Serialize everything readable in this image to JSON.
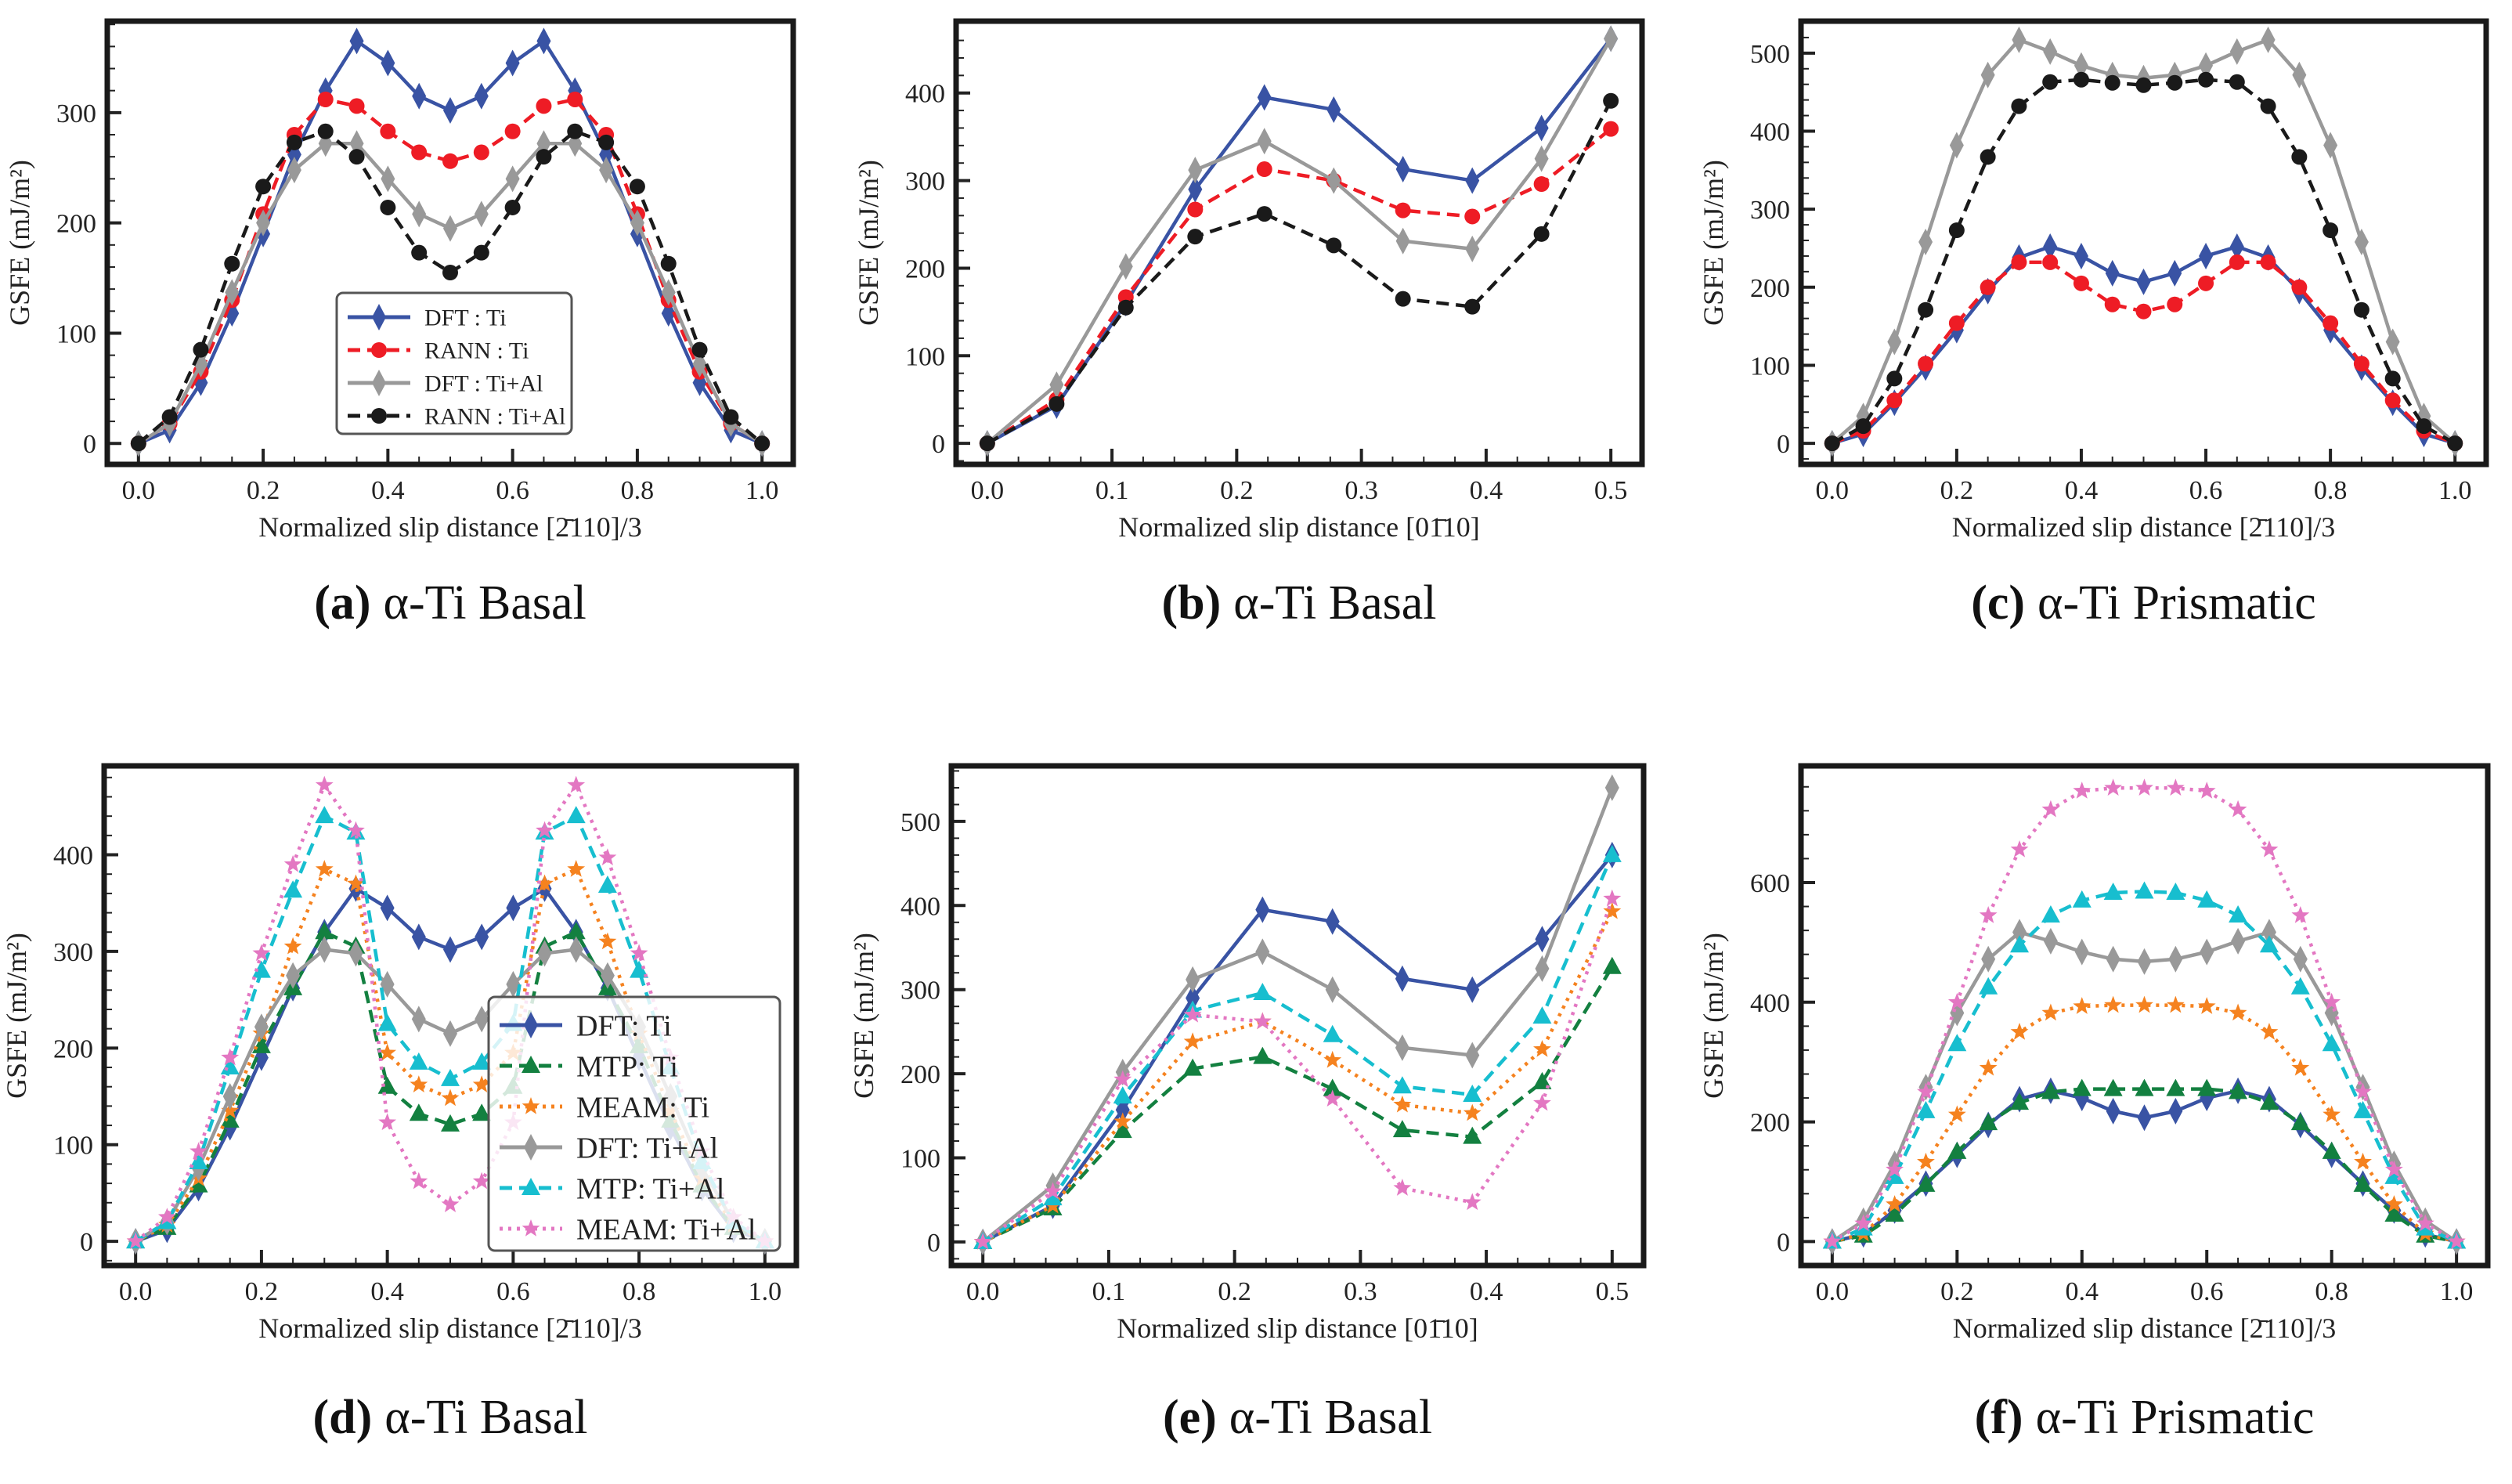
{
  "chart_data": [
    {
      "id": "a",
      "type": "line",
      "caption": {
        "label": "(a)",
        "text": "α-Ti Basal"
      },
      "xlabel": "Normalized slip distance [2̄110]/3",
      "ylabel": "GSFE (mJ/m²)",
      "xlim": [
        -0.05,
        1.05
      ],
      "ylim": [
        -19,
        383
      ],
      "xticks": [
        "0.0",
        "0.2",
        "0.4",
        "0.6",
        "0.8",
        "1.0"
      ],
      "yticks": [
        0,
        100,
        200,
        300
      ],
      "x": [
        0,
        0.05,
        0.1,
        0.15,
        0.2,
        0.25,
        0.3,
        0.35,
        0.4,
        0.45,
        0.5,
        0.55,
        0.6,
        0.65,
        0.7,
        0.75,
        0.8,
        0.85,
        0.9,
        0.95,
        1.0
      ],
      "legend": "center-bottom",
      "series": [
        {
          "name": "DFT : Ti",
          "color": "#3953a4",
          "style": "solid",
          "marker": "diamond",
          "values": [
            0,
            12,
            55,
            118,
            190,
            262,
            320,
            365,
            345,
            315,
            302,
            315,
            345,
            365,
            320,
            262,
            190,
            118,
            55,
            12,
            0
          ]
        },
        {
          "name": "RANN : Ti",
          "color": "#ee1c25",
          "style": "dashed",
          "marker": "circle",
          "values": [
            0,
            18,
            65,
            130,
            208,
            280,
            312,
            306,
            283,
            264,
            256,
            264,
            283,
            306,
            312,
            280,
            208,
            130,
            65,
            18,
            0
          ]
        },
        {
          "name": "DFT : Ti+Al",
          "color": "#999999",
          "style": "solid",
          "marker": "diamond",
          "values": [
            0,
            18,
            72,
            137,
            200,
            248,
            272,
            272,
            240,
            208,
            195,
            208,
            240,
            272,
            272,
            248,
            200,
            137,
            72,
            18,
            0
          ]
        },
        {
          "name": "RANN : Ti+Al",
          "color": "#1a1a1a",
          "style": "dashed",
          "marker": "circle",
          "values": [
            0,
            24,
            85,
            163,
            233,
            273,
            283,
            260,
            214,
            173,
            155,
            173,
            214,
            260,
            283,
            273,
            233,
            163,
            85,
            24,
            0
          ]
        }
      ]
    },
    {
      "id": "b",
      "type": "line",
      "caption": {
        "label": "(b)",
        "text": "α-Ti Basal"
      },
      "xlabel": "Normalized slip distance [01̄10]",
      "ylabel": "GSFE (mJ/m²)",
      "xlim": [
        -0.025,
        0.525
      ],
      "ylim": [
        -24,
        482
      ],
      "xticks": [
        "0.0",
        "0.1",
        "0.2",
        "0.3",
        "0.4",
        "0.5"
      ],
      "yticks": [
        0,
        100,
        200,
        300,
        400
      ],
      "x": [
        0,
        0.0556,
        0.1111,
        0.1667,
        0.2222,
        0.2778,
        0.3333,
        0.3889,
        0.4444,
        0.5
      ],
      "legend": "none",
      "series": [
        {
          "name": "DFT : Ti",
          "color": "#3953a4",
          "style": "solid",
          "marker": "diamond",
          "values": [
            0,
            43,
            160,
            290,
            395,
            381,
            313,
            300,
            360,
            462
          ]
        },
        {
          "name": "RANN : Ti",
          "color": "#ee1c25",
          "style": "dashed",
          "marker": "circle",
          "values": [
            0,
            50,
            167,
            267,
            313,
            300,
            266,
            259,
            296,
            359
          ]
        },
        {
          "name": "DFT : Ti+Al",
          "color": "#999999",
          "style": "solid",
          "marker": "diamond",
          "values": [
            0,
            67,
            202,
            312,
            345,
            300,
            231,
            222,
            325,
            462
          ]
        },
        {
          "name": "RANN : Ti+Al",
          "color": "#1a1a1a",
          "style": "dashed",
          "marker": "circle",
          "values": [
            0,
            45,
            155,
            236,
            262,
            226,
            165,
            156,
            239,
            391
          ]
        }
      ]
    },
    {
      "id": "c",
      "type": "line",
      "caption": {
        "label": "(c)",
        "text": "α-Ti Prismatic"
      },
      "xlabel": "Normalized slip distance [2̄110]/3",
      "ylabel": "GSFE (mJ/m²)",
      "xlim": [
        -0.05,
        1.05
      ],
      "ylim": [
        -27,
        541
      ],
      "xticks": [
        "0.0",
        "0.2",
        "0.4",
        "0.6",
        "0.8",
        "1.0"
      ],
      "yticks": [
        0,
        100,
        200,
        300,
        400,
        500
      ],
      "x": [
        0,
        0.05,
        0.1,
        0.15,
        0.2,
        0.25,
        0.3,
        0.35,
        0.4,
        0.45,
        0.5,
        0.55,
        0.6,
        0.65,
        0.7,
        0.75,
        0.8,
        0.85,
        0.9,
        0.95,
        1.0
      ],
      "legend": "none",
      "series": [
        {
          "name": "DFT : Ti",
          "color": "#3953a4",
          "style": "solid",
          "marker": "diamond",
          "values": [
            0,
            12,
            52,
            97,
            145,
            195,
            238,
            252,
            240,
            218,
            207,
            218,
            240,
            252,
            238,
            195,
            145,
            97,
            52,
            12,
            0
          ]
        },
        {
          "name": "RANN : Ti",
          "color": "#ee1c25",
          "style": "dashed",
          "marker": "circle",
          "values": [
            0,
            16,
            55,
            102,
            154,
            200,
            232,
            232,
            205,
            178,
            169,
            178,
            205,
            232,
            232,
            200,
            154,
            102,
            55,
            16,
            0
          ]
        },
        {
          "name": "DFT : Ti+Al",
          "color": "#999999",
          "style": "solid",
          "marker": "diamond",
          "values": [
            0,
            35,
            130,
            258,
            382,
            472,
            517,
            502,
            484,
            472,
            468,
            472,
            484,
            502,
            517,
            472,
            382,
            258,
            130,
            35,
            0
          ]
        },
        {
          "name": "RANN : Ti+Al",
          "color": "#1a1a1a",
          "style": "dashed",
          "marker": "circle",
          "values": [
            0,
            22,
            83,
            171,
            273,
            367,
            432,
            463,
            466,
            462,
            459,
            462,
            466,
            463,
            432,
            367,
            273,
            171,
            83,
            22,
            0
          ]
        }
      ]
    },
    {
      "id": "d",
      "type": "line",
      "caption": {
        "label": "(d)",
        "text": "α-Ti Basal"
      },
      "xlabel": "Normalized slip distance [2̄110]/3",
      "ylabel": "GSFE (mJ/m²)",
      "xlim": [
        -0.05,
        1.05
      ],
      "ylim": [
        -25,
        492
      ],
      "xticks": [
        "0.0",
        "0.2",
        "0.4",
        "0.6",
        "0.8",
        "1.0"
      ],
      "yticks": [
        0,
        100,
        200,
        300,
        400
      ],
      "x": [
        0,
        0.05,
        0.1,
        0.15,
        0.2,
        0.25,
        0.3,
        0.35,
        0.4,
        0.45,
        0.5,
        0.55,
        0.6,
        0.65,
        0.7,
        0.75,
        0.8,
        0.85,
        0.9,
        0.95,
        1.0
      ],
      "legend": "bottom-right",
      "series": [
        {
          "name": "DFT: Ti",
          "color": "#3953a4",
          "style": "solid",
          "marker": "diamond",
          "values": [
            0,
            12,
            55,
            118,
            190,
            262,
            320,
            365,
            345,
            315,
            302,
            315,
            345,
            365,
            320,
            262,
            190,
            118,
            55,
            12,
            0
          ]
        },
        {
          "name": "MTP: Ti",
          "color": "#138040",
          "style": "dashed",
          "marker": "triangle",
          "values": [
            0,
            14,
            58,
            125,
            202,
            262,
            320,
            305,
            160,
            132,
            121,
            132,
            160,
            305,
            320,
            262,
            202,
            125,
            58,
            14,
            0
          ]
        },
        {
          "name": "MEAM: Ti",
          "color": "#f5821f",
          "style": "dotted",
          "marker": "star",
          "values": [
            0,
            17,
            65,
            135,
            215,
            305,
            385,
            370,
            195,
            162,
            148,
            162,
            195,
            370,
            385,
            310,
            215,
            135,
            65,
            17,
            0
          ]
        },
        {
          "name": "DFT: Ti+Al",
          "color": "#999999",
          "style": "solid",
          "marker": "diamond",
          "values": [
            0,
            20,
            76,
            150,
            222,
            275,
            302,
            298,
            266,
            230,
            215,
            230,
            266,
            298,
            302,
            275,
            222,
            150,
            76,
            20,
            0
          ]
        },
        {
          "name": "MTP: Ti+Al",
          "color": "#17becf",
          "style": "dashed",
          "marker": "triangle",
          "values": [
            0,
            20,
            82,
            180,
            280,
            363,
            440,
            423,
            225,
            185,
            168,
            185,
            225,
            423,
            440,
            368,
            280,
            180,
            82,
            20,
            0
          ]
        },
        {
          "name": "MEAM: Ti+Al",
          "color": "#e377c2",
          "style": "dotted",
          "marker": "star",
          "values": [
            0,
            25,
            93,
            190,
            298,
            390,
            472,
            425,
            123,
            62,
            38,
            62,
            123,
            425,
            472,
            397,
            298,
            190,
            93,
            25,
            0
          ]
        }
      ]
    },
    {
      "id": "e",
      "type": "line",
      "caption": {
        "label": "(e)",
        "text": "α-Ti Basal"
      },
      "xlabel": "Normalized slip distance [01̄10]",
      "ylabel": "GSFE (mJ/m²)",
      "xlim": [
        -0.025,
        0.525
      ],
      "ylim": [
        -28,
        566
      ],
      "xticks": [
        "0.0",
        "0.1",
        "0.2",
        "0.3",
        "0.4",
        "0.5"
      ],
      "yticks": [
        0,
        100,
        200,
        300,
        400,
        500
      ],
      "x": [
        0,
        0.0556,
        0.1111,
        0.1667,
        0.2222,
        0.2778,
        0.3333,
        0.3889,
        0.4444,
        0.5
      ],
      "legend": "none",
      "series": [
        {
          "name": "DFT: Ti",
          "color": "#3953a4",
          "style": "solid",
          "marker": "diamond",
          "values": [
            0,
            43,
            157,
            290,
            395,
            381,
            313,
            300,
            360,
            460
          ]
        },
        {
          "name": "MTP: Ti",
          "color": "#138040",
          "style": "dashed",
          "marker": "triangle",
          "values": [
            0,
            40,
            132,
            206,
            220,
            182,
            133,
            125,
            190,
            327
          ]
        },
        {
          "name": "MEAM: Ti",
          "color": "#f5821f",
          "style": "dotted",
          "marker": "star",
          "values": [
            0,
            43,
            143,
            238,
            262,
            216,
            163,
            153,
            229,
            393
          ]
        },
        {
          "name": "DFT: Ti+Al",
          "color": "#999999",
          "style": "solid",
          "marker": "diamond",
          "values": [
            0,
            67,
            202,
            312,
            345,
            300,
            231,
            222,
            325,
            540
          ]
        },
        {
          "name": "MTP: Ti+Al",
          "color": "#17becf",
          "style": "dashed",
          "marker": "triangle",
          "values": [
            0,
            52,
            173,
            275,
            296,
            246,
            185,
            175,
            268,
            460
          ]
        },
        {
          "name": "MEAM: Ti+Al",
          "color": "#e377c2",
          "style": "dotted",
          "marker": "star",
          "values": [
            0,
            60,
            193,
            270,
            262,
            170,
            64,
            47,
            165,
            408
          ]
        }
      ]
    },
    {
      "id": "f",
      "type": "line",
      "caption": {
        "label": "(f)",
        "text": "α-Ti Prismatic"
      },
      "xlabel": "Normalized slip distance [2̄110]/3",
      "ylabel": "GSFE (mJ/m²)",
      "xlim": [
        -0.05,
        1.05
      ],
      "ylim": [
        -40,
        795
      ],
      "xticks": [
        "0.0",
        "0.2",
        "0.4",
        "0.6",
        "0.8",
        "1.0"
      ],
      "yticks": [
        0,
        200,
        400,
        600
      ],
      "x": [
        0,
        0.05,
        0.1,
        0.15,
        0.2,
        0.25,
        0.3,
        0.35,
        0.4,
        0.45,
        0.5,
        0.55,
        0.6,
        0.65,
        0.7,
        0.75,
        0.8,
        0.85,
        0.9,
        0.95,
        1.0
      ],
      "legend": "none",
      "series": [
        {
          "name": "DFT: Ti",
          "color": "#3953a4",
          "style": "solid",
          "marker": "diamond",
          "values": [
            0,
            12,
            52,
            97,
            145,
            195,
            238,
            252,
            240,
            218,
            207,
            218,
            240,
            252,
            238,
            195,
            145,
            97,
            52,
            12,
            0
          ]
        },
        {
          "name": "MTP: Ti",
          "color": "#138040",
          "style": "dashed",
          "marker": "triangle",
          "values": [
            0,
            10,
            45,
            95,
            150,
            198,
            232,
            250,
            255,
            255,
            255,
            255,
            255,
            250,
            232,
            198,
            150,
            95,
            45,
            10,
            0
          ]
        },
        {
          "name": "MEAM: Ti",
          "color": "#f5821f",
          "style": "dotted",
          "marker": "star",
          "values": [
            0,
            13,
            62,
            133,
            212,
            290,
            350,
            382,
            393,
            395,
            395,
            395,
            393,
            382,
            350,
            290,
            212,
            133,
            62,
            13,
            0
          ]
        },
        {
          "name": "DFT: Ti+Al",
          "color": "#999999",
          "style": "solid",
          "marker": "diamond",
          "values": [
            0,
            35,
            130,
            258,
            382,
            472,
            517,
            502,
            484,
            472,
            468,
            472,
            484,
            502,
            517,
            472,
            382,
            258,
            130,
            35,
            0
          ]
        },
        {
          "name": "MTP: Ti+Al",
          "color": "#17becf",
          "style": "dashed",
          "marker": "triangle",
          "values": [
            0,
            22,
            108,
            218,
            330,
            425,
            495,
            545,
            570,
            583,
            585,
            583,
            570,
            545,
            495,
            425,
            330,
            218,
            108,
            22,
            0
          ]
        },
        {
          "name": "MEAM: Ti+Al",
          "color": "#e377c2",
          "style": "dotted",
          "marker": "star",
          "values": [
            0,
            30,
            120,
            250,
            400,
            545,
            655,
            722,
            753,
            758,
            758,
            758,
            753,
            722,
            655,
            545,
            400,
            250,
            120,
            30,
            0
          ]
        }
      ]
    }
  ]
}
